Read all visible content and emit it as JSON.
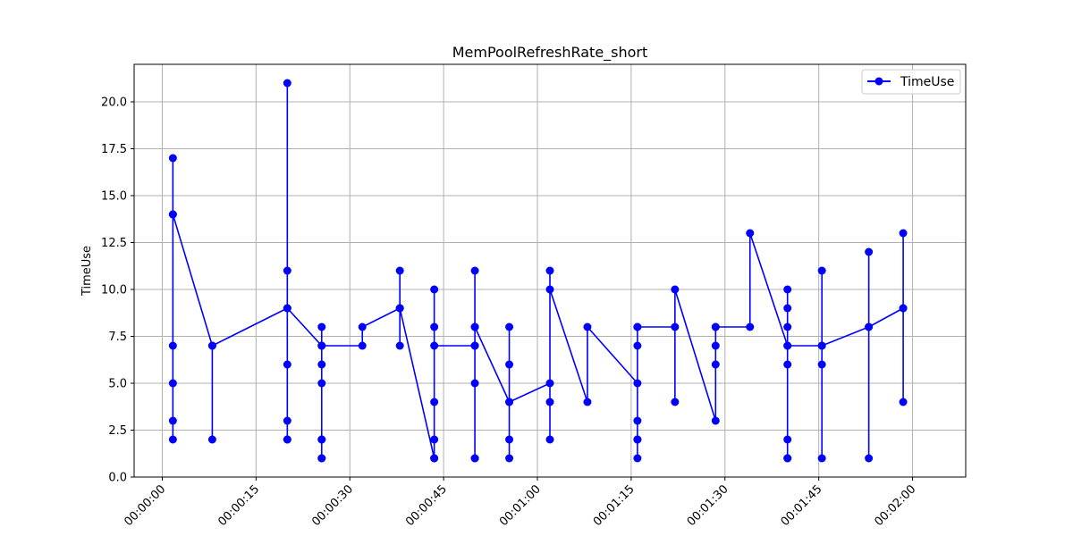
{
  "chart_data": {
    "type": "line",
    "title": "MemPoolRefreshRate_short",
    "xlabel": "",
    "ylabel": "TimeUse",
    "x_unit": "seconds",
    "x_tick_labels": [
      "00:00:00",
      "00:00:15",
      "00:00:30",
      "00:00:45",
      "00:01:00",
      "00:01:15",
      "00:01:30",
      "00:01:45",
      "00:02:00"
    ],
    "x_ticks": [
      0,
      15,
      30,
      45,
      60,
      75,
      90,
      105,
      120
    ],
    "xlim": [
      -4.5,
      128.5
    ],
    "ylim": [
      0,
      22
    ],
    "y_ticks": [
      0,
      2.5,
      5,
      7.5,
      10,
      12.5,
      15,
      17.5,
      20
    ],
    "y_tick_labels": [
      "0.0",
      "2.5",
      "5.0",
      "7.5",
      "10.0",
      "12.5",
      "15.0",
      "17.5",
      "20.0"
    ],
    "grid": true,
    "legend_position": "top-right",
    "series": [
      {
        "name": "TimeUse",
        "color": "#0000ff",
        "marker": "circle",
        "points": [
          [
            1.7,
            7
          ],
          [
            1.7,
            14
          ],
          [
            1.7,
            17
          ],
          [
            1.7,
            3
          ],
          [
            1.7,
            5
          ],
          [
            1.7,
            2
          ],
          [
            1.7,
            14
          ],
          [
            8,
            7
          ],
          [
            8,
            2
          ],
          [
            8,
            7
          ],
          [
            20,
            9
          ],
          [
            20,
            21
          ],
          [
            20,
            2
          ],
          [
            20,
            11
          ],
          [
            20,
            3
          ],
          [
            20,
            6
          ],
          [
            20,
            2
          ],
          [
            20,
            9
          ],
          [
            25.5,
            7
          ],
          [
            25.5,
            8
          ],
          [
            25.5,
            1
          ],
          [
            25.5,
            6
          ],
          [
            25.5,
            2
          ],
          [
            25.5,
            5
          ],
          [
            25.5,
            1
          ],
          [
            25.5,
            2
          ],
          [
            25.5,
            7
          ],
          [
            32,
            7
          ],
          [
            32,
            8
          ],
          [
            38,
            9
          ],
          [
            38,
            11
          ],
          [
            38,
            7
          ],
          [
            38,
            9
          ],
          [
            43.5,
            1
          ],
          [
            43.5,
            10
          ],
          [
            43.5,
            2
          ],
          [
            43.5,
            8
          ],
          [
            43.5,
            4
          ],
          [
            43.5,
            1
          ],
          [
            43.5,
            7
          ],
          [
            50,
            7
          ],
          [
            50,
            11
          ],
          [
            50,
            1
          ],
          [
            50,
            8
          ],
          [
            50,
            5
          ],
          [
            50,
            1
          ],
          [
            50,
            7
          ],
          [
            50,
            8
          ],
          [
            55.5,
            4
          ],
          [
            55.5,
            8
          ],
          [
            55.5,
            1
          ],
          [
            55.5,
            6
          ],
          [
            55.5,
            2
          ],
          [
            55.5,
            4
          ],
          [
            62,
            5
          ],
          [
            62,
            11
          ],
          [
            62,
            2
          ],
          [
            62,
            4
          ],
          [
            62,
            10
          ],
          [
            68,
            4
          ],
          [
            68,
            8
          ],
          [
            76,
            5
          ],
          [
            76,
            8
          ],
          [
            76,
            1
          ],
          [
            76,
            7
          ],
          [
            76,
            2
          ],
          [
            76,
            3
          ],
          [
            76,
            2
          ],
          [
            76,
            8
          ],
          [
            82,
            8
          ],
          [
            82,
            4
          ],
          [
            82,
            10
          ],
          [
            88.5,
            3
          ],
          [
            88.5,
            8
          ],
          [
            88.5,
            6
          ],
          [
            88.5,
            7
          ],
          [
            88.5,
            8
          ],
          [
            94,
            8
          ],
          [
            94,
            13
          ],
          [
            100,
            7
          ],
          [
            100,
            10
          ],
          [
            100,
            1
          ],
          [
            100,
            8
          ],
          [
            100,
            2
          ],
          [
            100,
            6
          ],
          [
            100,
            1
          ],
          [
            100,
            9
          ],
          [
            100,
            7
          ],
          [
            105.5,
            7
          ],
          [
            105.5,
            1
          ],
          [
            105.5,
            6
          ],
          [
            105.5,
            11
          ],
          [
            105.5,
            7
          ],
          [
            113,
            8
          ],
          [
            113,
            1
          ],
          [
            113,
            12
          ],
          [
            113,
            8
          ],
          [
            118.5,
            9
          ],
          [
            118.5,
            4
          ],
          [
            118.5,
            13
          ],
          [
            118.5,
            9
          ]
        ]
      }
    ]
  }
}
